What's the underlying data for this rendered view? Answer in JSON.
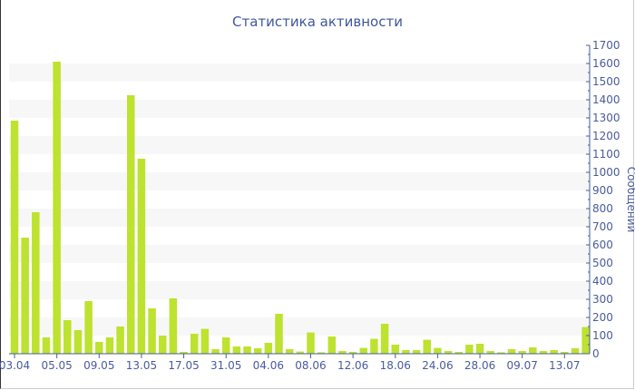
{
  "chart_data": {
    "type": "bar",
    "title": "Статистика активности",
    "ylabel": "Сообщений",
    "xlabel": "",
    "ylim": [
      0,
      1700
    ],
    "ytick_step": 100,
    "y_axis_position": "right",
    "grid": "alternating horizontal bands",
    "bar_color": "#bde22f",
    "axis_color": "#4a5b9c",
    "categories": [
      "03.04",
      "",
      "",
      "",
      "05.05",
      "",
      "",
      "",
      "09.05",
      "",
      "",
      "",
      "13.05",
      "",
      "",
      "",
      "17.05",
      "",
      "",
      "",
      "31.05",
      "",
      "",
      "",
      "04.06",
      "",
      "",
      "",
      "08.06",
      "",
      "",
      "",
      "12.06",
      "",
      "",
      "",
      "18.06",
      "",
      "",
      "",
      "24.06",
      "",
      "",
      "",
      "28.06",
      "",
      "",
      "",
      "09.07",
      "",
      "",
      "",
      "13.07",
      "",
      ""
    ],
    "values": [
      1285,
      640,
      780,
      90,
      1610,
      185,
      130,
      290,
      65,
      90,
      150,
      1425,
      1075,
      250,
      100,
      305,
      10,
      110,
      137,
      25,
      90,
      40,
      40,
      30,
      60,
      220,
      25,
      12,
      117,
      8,
      95,
      15,
      10,
      32,
      82,
      165,
      50,
      20,
      20,
      77,
      32,
      15,
      10,
      50,
      55,
      15,
      8,
      25,
      15,
      35,
      15,
      20,
      10,
      30,
      147
    ]
  }
}
